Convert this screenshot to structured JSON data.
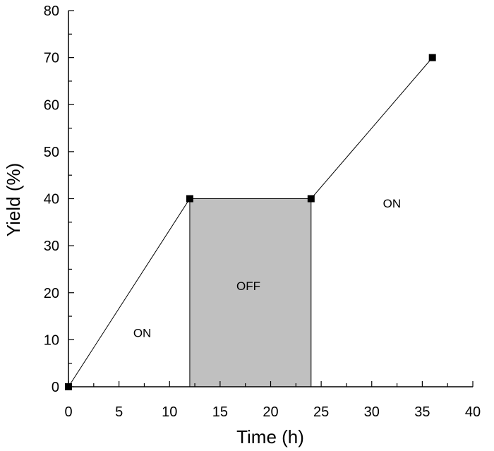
{
  "chart_data": {
    "type": "line",
    "title": "",
    "xlabel": "Time (h)",
    "ylabel": "Yield (%)",
    "xlim": [
      0,
      40
    ],
    "ylim": [
      0,
      80
    ],
    "xticks": [
      "0",
      "5",
      "10",
      "15",
      "20",
      "25",
      "30",
      "35",
      "40"
    ],
    "yticks": [
      "0",
      "10",
      "20",
      "30",
      "40",
      "50",
      "60",
      "70",
      "80"
    ],
    "grid": false,
    "legend": "none",
    "series": [
      {
        "x": [
          0,
          12,
          24,
          36
        ],
        "y": [
          0,
          40,
          40,
          70
        ],
        "marker": "square",
        "color": "#000000"
      }
    ],
    "shaded_region": {
      "x": [
        12,
        24
      ],
      "y": [
        0,
        40
      ],
      "color": "#c0c0c0"
    },
    "annotations": [
      {
        "text": "ON",
        "x": 7.3,
        "y": 11.5
      },
      {
        "text": "OFF",
        "x": 17.8,
        "y": 21.5
      },
      {
        "text": "ON",
        "x": 32,
        "y": 39
      }
    ]
  }
}
